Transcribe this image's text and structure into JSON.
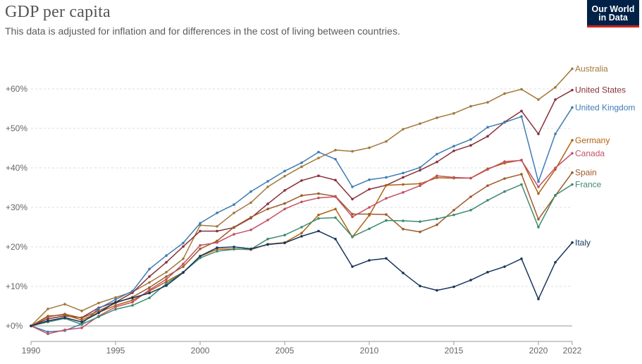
{
  "header": {
    "title": "GDP per capita",
    "subtitle": "This data is adjusted for inflation and for differences in the cost of living between countries.",
    "logo_line1": "Our World",
    "logo_line2": "in Data"
  },
  "colors": {
    "logo_bg": "#002147",
    "logo_accent": "#ce261e",
    "grid": "#dddddd",
    "axis": "#999999"
  },
  "chart_data": {
    "type": "line",
    "title": "GDP per capita",
    "xlabel": "",
    "ylabel": "",
    "xlim": [
      1990,
      2022
    ],
    "ylim": [
      -5,
      66
    ],
    "x_ticks": [
      1990,
      1995,
      2000,
      2005,
      2010,
      2015,
      2020,
      2022
    ],
    "y_ticks": [
      0,
      10,
      20,
      30,
      40,
      50,
      60
    ],
    "y_tick_labels": [
      "+0%",
      "+10%",
      "+20%",
      "+30%",
      "+40%",
      "+50%",
      "+60%"
    ],
    "x": [
      1990,
      1991,
      1992,
      1993,
      1994,
      1995,
      1996,
      1997,
      1998,
      1999,
      2000,
      2001,
      2002,
      2003,
      2004,
      2005,
      2006,
      2007,
      2008,
      2009,
      2010,
      2011,
      2012,
      2013,
      2014,
      2015,
      2016,
      2017,
      2018,
      2019,
      2020,
      2021,
      2022
    ],
    "series": [
      {
        "name": "Australia",
        "color": "#a2783a",
        "values": [
          0,
          4.3,
          5.5,
          3.8,
          5.8,
          7.2,
          8.6,
          11.0,
          13.6,
          17.0,
          25.5,
          25.2,
          28.6,
          31.2,
          35.2,
          37.9,
          40.3,
          42.5,
          44.5,
          44.2,
          45.1,
          46.7,
          49.8,
          51.2,
          52.7,
          53.8,
          55.6,
          56.6,
          58.8,
          59.9,
          57.3,
          60.4,
          65.1
        ]
      },
      {
        "name": "United States",
        "color": "#883039",
        "values": [
          0,
          1.8,
          2.5,
          2.1,
          4.6,
          6.0,
          8.4,
          12.5,
          16.1,
          20.1,
          24.0,
          24.0,
          24.9,
          27.3,
          30.9,
          34.3,
          36.8,
          38.0,
          36.9,
          32.1,
          34.6,
          35.6,
          37.6,
          39.4,
          41.5,
          44.3,
          45.7,
          48.0,
          51.6,
          54.4,
          48.6,
          57.3,
          59.7
        ]
      },
      {
        "name": "United Kingdom",
        "color": "#3f7cb4",
        "values": [
          0,
          -1.5,
          -1.2,
          0.5,
          4.4,
          6.7,
          8.8,
          14.4,
          17.8,
          21.0,
          26.0,
          28.6,
          30.7,
          34.0,
          36.6,
          39.2,
          41.3,
          44.0,
          42.2,
          35.2,
          37.0,
          37.6,
          38.7,
          40.1,
          43.5,
          45.5,
          47.2,
          50.3,
          51.5,
          53.0,
          36.5,
          48.6,
          55.3
        ]
      },
      {
        "name": "Germany",
        "color": "#b16214",
        "values": [
          0,
          2.5,
          2.8,
          1.5,
          3.4,
          5.2,
          6.5,
          8.8,
          11.2,
          13.6,
          17.6,
          19.4,
          19.5,
          19.3,
          20.7,
          21.1,
          23.5,
          28.1,
          29.6,
          22.5,
          28.0,
          35.6,
          35.8,
          36.0,
          37.5,
          37.4,
          37.4,
          39.8,
          41.2,
          42.0,
          33.5,
          39.6,
          47.0
        ]
      },
      {
        "name": "Spain",
        "color": "#9e5a2a",
        "values": [
          0,
          2.3,
          3.0,
          2.0,
          3.8,
          5.8,
          7.3,
          9.7,
          12.5,
          15.0,
          19.5,
          21.5,
          25.0,
          27.5,
          29.6,
          31.0,
          33.0,
          33.5,
          32.8,
          28.3,
          28.3,
          28.2,
          24.5,
          23.8,
          25.6,
          29.3,
          32.7,
          35.5,
          37.3,
          38.4,
          27.0,
          33.0,
          38.8
        ]
      },
      {
        "name": "Canada",
        "color": "#c15065",
        "values": [
          0,
          -2.0,
          -1.0,
          -0.5,
          2.5,
          4.8,
          6.0,
          9.1,
          11.8,
          15.7,
          20.4,
          21.1,
          23.2,
          24.3,
          26.8,
          29.6,
          31.4,
          32.4,
          32.7,
          27.6,
          30.0,
          32.3,
          33.8,
          35.5,
          38.0,
          37.6,
          37.4,
          39.6,
          41.6,
          41.9,
          35.2,
          40.0,
          43.7
        ]
      },
      {
        "name": "France",
        "color": "#3d8b6e",
        "values": [
          0,
          1.0,
          1.9,
          0.4,
          2.3,
          4.2,
          5.2,
          7.1,
          10.7,
          13.6,
          17.2,
          18.9,
          19.4,
          19.4,
          22.0,
          23.0,
          25.0,
          27.2,
          27.4,
          22.6,
          24.6,
          26.7,
          26.6,
          26.4,
          27.1,
          28.1,
          29.3,
          31.8,
          34.0,
          35.8,
          25.0,
          33.1,
          35.8
        ]
      },
      {
        "name": "Italy",
        "color": "#18365c",
        "values": [
          0,
          1.3,
          2.1,
          1.0,
          3.3,
          6.0,
          7.1,
          8.3,
          10.2,
          13.5,
          17.7,
          19.8,
          20.0,
          19.5,
          20.6,
          21.0,
          22.7,
          24.0,
          22.0,
          15.0,
          16.6,
          17.1,
          13.4,
          10.1,
          9.0,
          9.9,
          11.6,
          13.6,
          15.0,
          17.0,
          6.8,
          16.1,
          21.1
        ]
      }
    ]
  }
}
